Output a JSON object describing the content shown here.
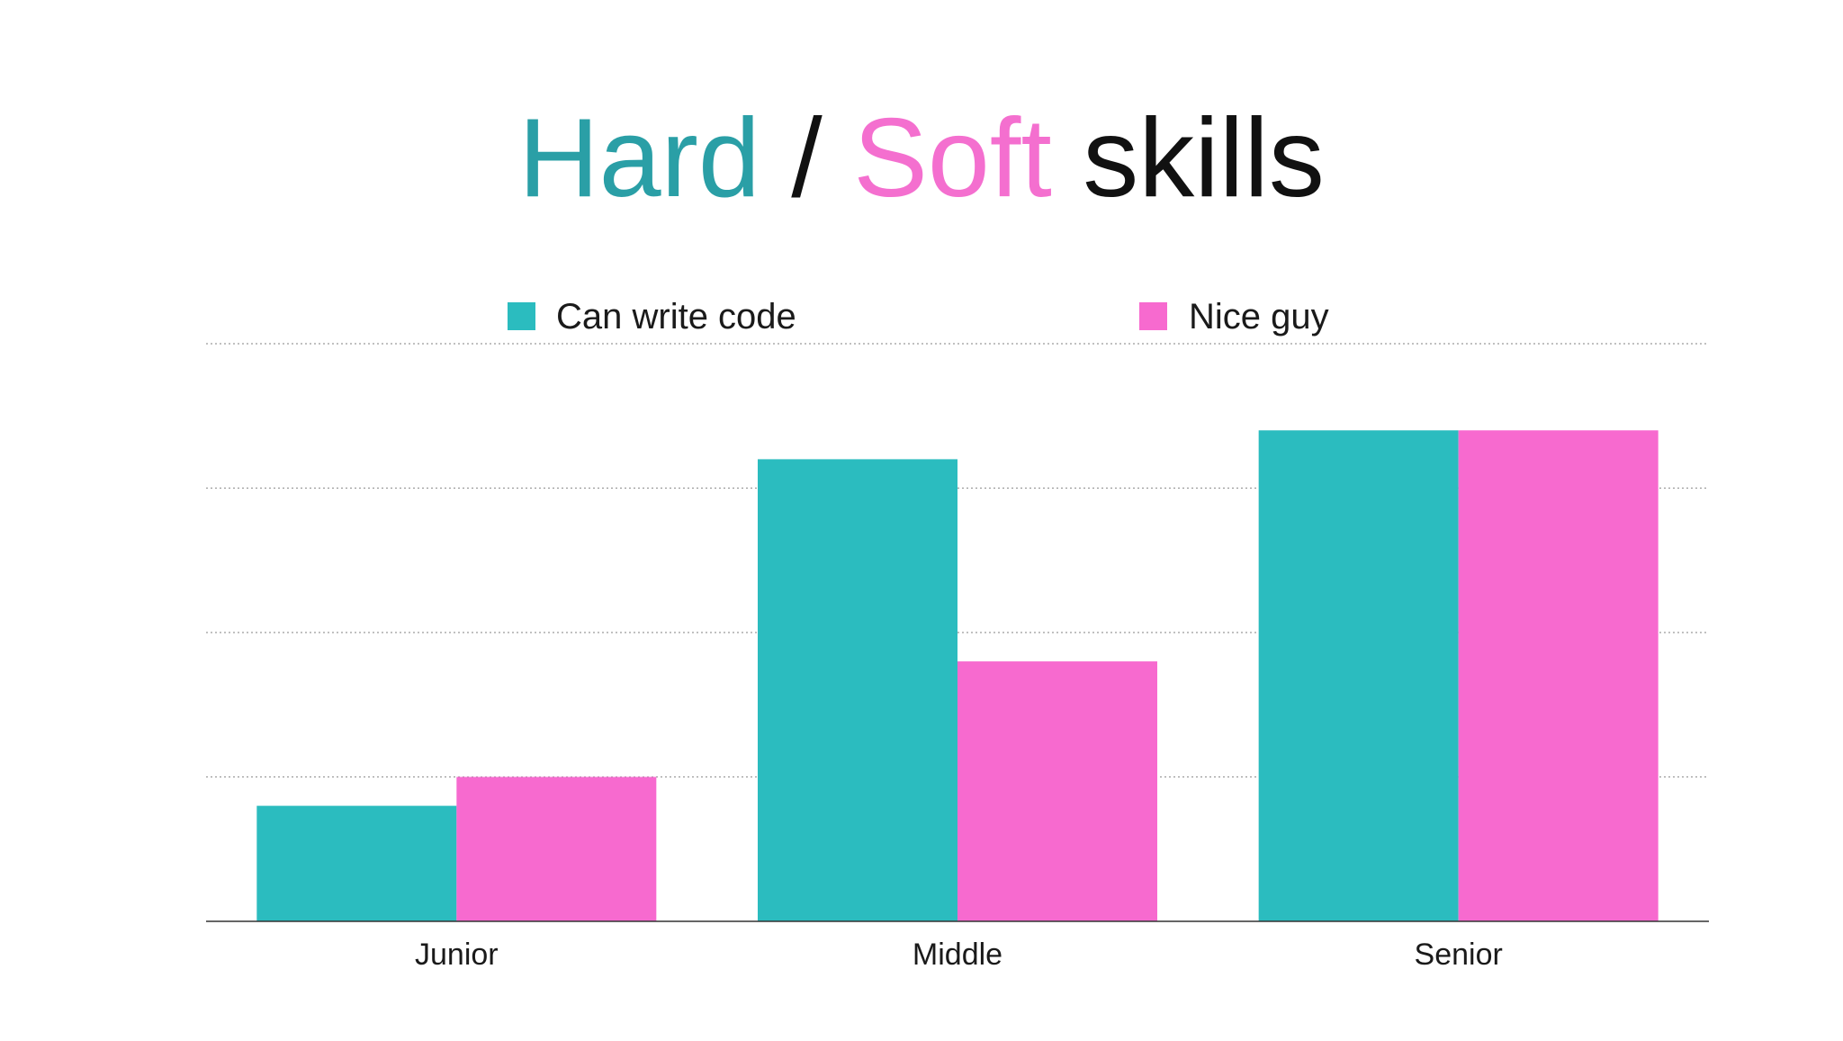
{
  "title": {
    "part1": "Hard",
    "separator": " / ",
    "part2": "Soft",
    "part3": " skills",
    "colors": {
      "part1": "#2a9fa6",
      "separator": "#111111",
      "part2": "#f46fcf",
      "part3": "#111111"
    }
  },
  "chart_data": {
    "type": "bar",
    "title": "Hard / Soft skills",
    "categories": [
      "Junior",
      "Middle",
      "Senior"
    ],
    "series": [
      {
        "name": "Can write code",
        "color": "#2bbcbf",
        "values": [
          0.8,
          3.2,
          3.4
        ]
      },
      {
        "name": "Nice guy",
        "color": "#f76acf",
        "values": [
          1.0,
          1.8,
          3.4
        ]
      }
    ],
    "ylim": [
      0,
      4
    ],
    "gridlines": [
      1,
      2,
      3,
      4
    ],
    "grid": true,
    "legend": "top",
    "xlabel": "",
    "ylabel": ""
  }
}
